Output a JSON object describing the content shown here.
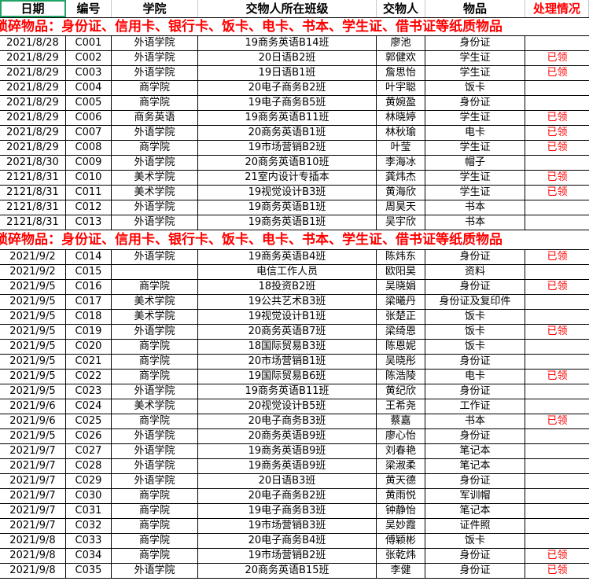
{
  "colors": {
    "status": "#ff0000",
    "selection": "#21a366"
  },
  "headers": [
    "日期",
    "编号",
    "学院",
    "交物人所在班级",
    "交物人",
    "物品",
    "处理情况"
  ],
  "banner": "琐碎物品：身份证、信用卡、银行卡、饭卡、电卡、书本、学生证、借书证等纸质物品",
  "section1": [
    [
      "2021/8/28",
      "C001",
      "外语学院",
      "19商务英语B14班",
      "廖池",
      "身份证",
      ""
    ],
    [
      "2021/8/29",
      "C002",
      "外语学院",
      "20日语B2班",
      "郭健欢",
      "学生证",
      "已领"
    ],
    [
      "2021/8/29",
      "C003",
      "外语学院",
      "19日语B1班",
      "詹思怡",
      "学生证",
      "已领"
    ],
    [
      "2021/8/29",
      "C004",
      "商学院",
      "20电子商务B2班",
      "叶宇聪",
      "饭卡",
      ""
    ],
    [
      "2021/8/29",
      "C005",
      "商学院",
      "19电子商务B5班",
      "黄婉盈",
      "身份证",
      ""
    ],
    [
      "2021/8/29",
      "C006",
      "商务英语",
      "19商务英语B11班",
      "林晓婷",
      "学生证",
      "已领"
    ],
    [
      "2021/8/29",
      "C007",
      "外语学院",
      "20商务英语B1班",
      "林秋瑜",
      "电卡",
      "已领"
    ],
    [
      "2021/8/29",
      "C008",
      "商学院",
      "19市场营销B2班",
      "叶莹",
      "学生证",
      "已领"
    ],
    [
      "2021/8/30",
      "C009",
      "外语学院",
      "20商务英语B10班",
      "李海冰",
      "帽子",
      ""
    ],
    [
      "2121/8/31",
      "C010",
      "美术学院",
      "21室内设计专插本",
      "龚炜杰",
      "学生证",
      "已领"
    ],
    [
      "2121/8/31",
      "C011",
      "美术学院",
      "19视觉设计B3班",
      "黄海欣",
      "学生证",
      "已领"
    ],
    [
      "2121/8/31",
      "C012",
      "外语学院",
      "19商务英语B1班",
      "周昊天",
      "书本",
      ""
    ],
    [
      "2121/8/31",
      "C013",
      "外语学院",
      "19商务英语B1班",
      "吴宇欣",
      "书本",
      ""
    ]
  ],
  "section2": [
    [
      "2021/9/2",
      "C014",
      "外语学院",
      "19商务英语B4班",
      "陈炜东",
      "身份证",
      "已领"
    ],
    [
      "2021/9/2",
      "C015",
      "",
      "电信工作人员",
      "欧阳昊",
      "资料",
      ""
    ],
    [
      "2021/9/5",
      "C016",
      "商学院",
      "18投资B2班",
      "吴晓娟",
      "身份证",
      "已领"
    ],
    [
      "2021/9/5",
      "C017",
      "美术学院",
      "19公共艺术B3班",
      "梁曦丹",
      "身份证及复印件",
      ""
    ],
    [
      "2021/9/5",
      "C018",
      "美术学院",
      "19视觉设计B1班",
      "张楚正",
      "饭卡",
      ""
    ],
    [
      "2021/9/5",
      "C019",
      "外语学院",
      "20商务英语B7班",
      "梁绮恩",
      "饭卡",
      "已领"
    ],
    [
      "2021/9/5",
      "C020",
      "商学院",
      "18国际贸易B3班",
      "陈恩妮",
      "饭卡",
      ""
    ],
    [
      "2021/9/5",
      "C021",
      "商学院",
      "20市场营销B1班",
      "吴晓彤",
      "身份证",
      ""
    ],
    [
      "2021/9/5",
      "C022",
      "商学院",
      "19国际贸易B6班",
      "陈浩陵",
      "电卡",
      "已领"
    ],
    [
      "2021/9/5",
      "C023",
      "外语学院",
      "19商务英语B11班",
      "黄纪欣",
      "身份证",
      ""
    ],
    [
      "2021/9/6",
      "C024",
      "美术学院",
      "20视觉设计B5班",
      "王希尧",
      "工作证",
      ""
    ],
    [
      "2021/9/6",
      "C025",
      "商学院",
      "20电子商务B3班",
      "蔡嘉",
      "书本",
      "已领"
    ],
    [
      "2021/9/5",
      "C026",
      "外语学院",
      "20商务英语B9班",
      "廖心怡",
      "身份证",
      ""
    ],
    [
      "2021/9/7",
      "C027",
      "外语学院",
      "19商务英语B9班",
      "刘春艳",
      "笔记本",
      ""
    ],
    [
      "2021/9/7",
      "C028",
      "外语学院",
      "19商务英语B9班",
      "梁淑柔",
      "笔记本",
      ""
    ],
    [
      "2021/9/7",
      "C029",
      "外语学院",
      "20日语B3班",
      "黄天德",
      "身份证",
      ""
    ],
    [
      "2021/9/7",
      "C030",
      "商学院",
      "20电子商务B2班",
      "黄雨悦",
      "军训帽",
      ""
    ],
    [
      "2021/9/7",
      "C031",
      "商学院",
      "19电子商务B3班",
      "钟静怡",
      "笔记本",
      ""
    ],
    [
      "2021/9/7",
      "C032",
      "商学院",
      "19市场营销B3班",
      "吴妙霞",
      "证件照",
      ""
    ],
    [
      "2021/9/8",
      "C033",
      "商学院",
      "20电子商务B4班",
      "傅颖彬",
      "饭卡",
      ""
    ],
    [
      "2021/9/8",
      "C034",
      "商学院",
      "19市场营销B2班",
      "张乾炜",
      "身份证",
      "已领"
    ],
    [
      "2021/9/8",
      "C035",
      "外语学院",
      "20商务英语B15班",
      "李健",
      "身份证",
      "已领"
    ]
  ]
}
